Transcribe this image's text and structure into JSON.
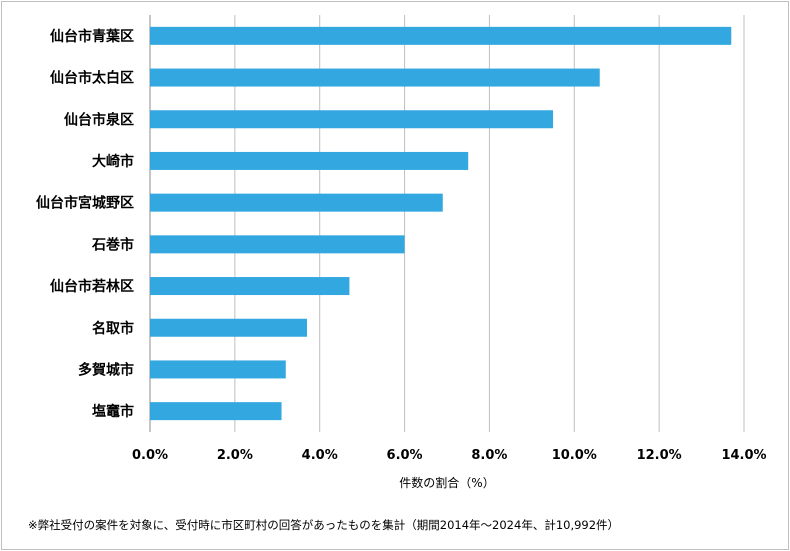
{
  "chart_data": {
    "type": "bar",
    "orientation": "horizontal",
    "categories": [
      "仙台市青葉区",
      "仙台市太白区",
      "仙台市泉区",
      "大崎市",
      "仙台市宮城野区",
      "石巻市",
      "仙台市若林区",
      "名取市",
      "多賀城市",
      "塩竈市"
    ],
    "values": [
      13.7,
      10.6,
      9.5,
      7.5,
      6.9,
      6.0,
      4.7,
      3.7,
      3.2,
      3.1
    ],
    "xlim": [
      0,
      14
    ],
    "x_ticks": [
      0,
      2,
      4,
      6,
      8,
      10,
      12,
      14
    ],
    "x_tick_labels": [
      "0.0%",
      "2.0%",
      "4.0%",
      "6.0%",
      "8.0%",
      "10.0%",
      "12.0%",
      "14.0%"
    ],
    "xlabel": "件数の割合（%）",
    "grid": true,
    "bar_color": "#33a8e0"
  },
  "footnote": "※弊社受付の案件を対象に、受付時に市区町村の回答があったものを集計（期間2014年～2024年、計10,992件）"
}
